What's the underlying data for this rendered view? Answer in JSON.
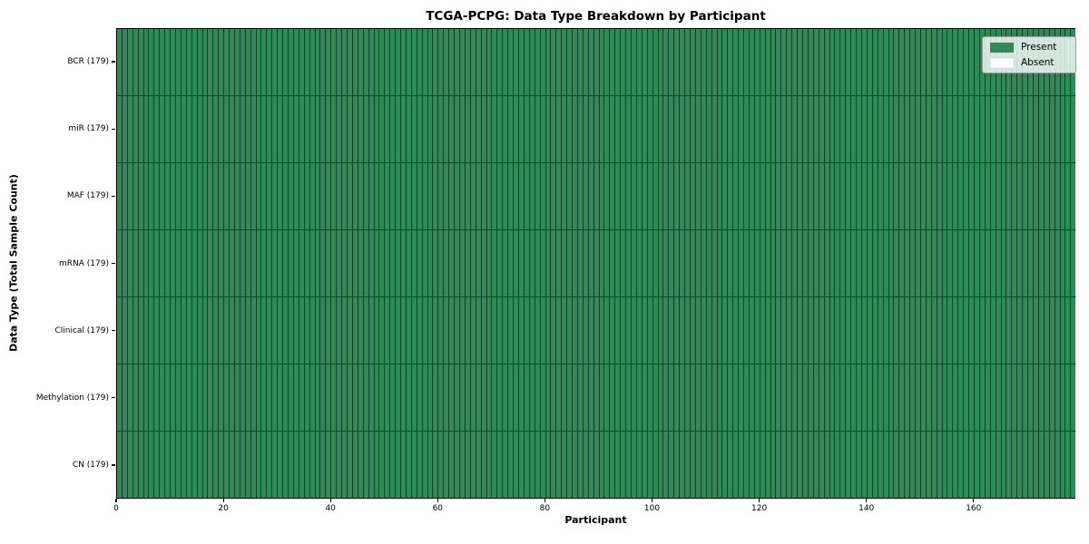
{
  "figure": {
    "title": "TCGA-PCPG: Data Type Breakdown by Participant"
  },
  "axes": {
    "xlabel": "Participant",
    "ylabel": "Data Type (Total Sample Count)"
  },
  "legend": {
    "present_label": "Present",
    "absent_label": "Absent"
  },
  "colors": {
    "present": "#2e8b57",
    "absent": "#ffffff",
    "cell_edge": "rgba(0,0,0,0.55)",
    "row_edge": "rgba(0,0,0,0.8)"
  },
  "chart_data": {
    "type": "heatmap",
    "title": "TCGA-PCPG: Data Type Breakdown by Participant",
    "xlabel": "Participant",
    "ylabel": "Data Type (Total Sample Count)",
    "n_participants": 179,
    "xlim": [
      0,
      179
    ],
    "x_ticks": [
      0,
      20,
      40,
      60,
      80,
      100,
      120,
      140,
      160
    ],
    "legend": [
      "Present",
      "Absent"
    ],
    "legend_position": "upper right",
    "grid": false,
    "rows": [
      {
        "label": "BCR",
        "tick_label": "BCR (179)",
        "total_samples": 179,
        "present": 179,
        "absent": 0
      },
      {
        "label": "miR",
        "tick_label": "miR (179)",
        "total_samples": 179,
        "present": 179,
        "absent": 0
      },
      {
        "label": "MAF",
        "tick_label": "MAF (179)",
        "total_samples": 179,
        "present": 179,
        "absent": 0
      },
      {
        "label": "mRNA",
        "tick_label": "mRNA (179)",
        "total_samples": 179,
        "present": 179,
        "absent": 0
      },
      {
        "label": "Clinical",
        "tick_label": "Clinical (179)",
        "total_samples": 179,
        "present": 179,
        "absent": 0
      },
      {
        "label": "Methylation",
        "tick_label": "Methylation (179)",
        "total_samples": 179,
        "present": 179,
        "absent": 0
      },
      {
        "label": "CN",
        "tick_label": "CN (179)",
        "total_samples": 179,
        "present": 179,
        "absent": 0
      }
    ]
  }
}
